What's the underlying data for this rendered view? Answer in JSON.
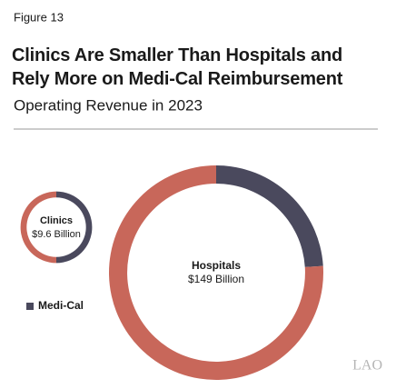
{
  "figure_label": "Figure 13",
  "logo": "LAO",
  "chart_data": {
    "type": "donut",
    "title": "Clinics Are Smaller Than Hospitals and Rely More on Medi-Cal Reimbursement",
    "subtitle": "Operating Revenue in 2023",
    "categories": [
      "Clinics",
      "Hospitals"
    ],
    "totals": [
      9.6,
      149
    ],
    "total_labels": [
      "$9.6 Billion",
      "$149 Billion"
    ],
    "series": [
      {
        "name": "Medi-Cal",
        "color": "#4a495d",
        "values": [
          50,
          24
        ]
      },
      {
        "color": "#c8675a",
        "values": [
          50,
          76
        ]
      }
    ],
    "legend": "bottom-left"
  }
}
